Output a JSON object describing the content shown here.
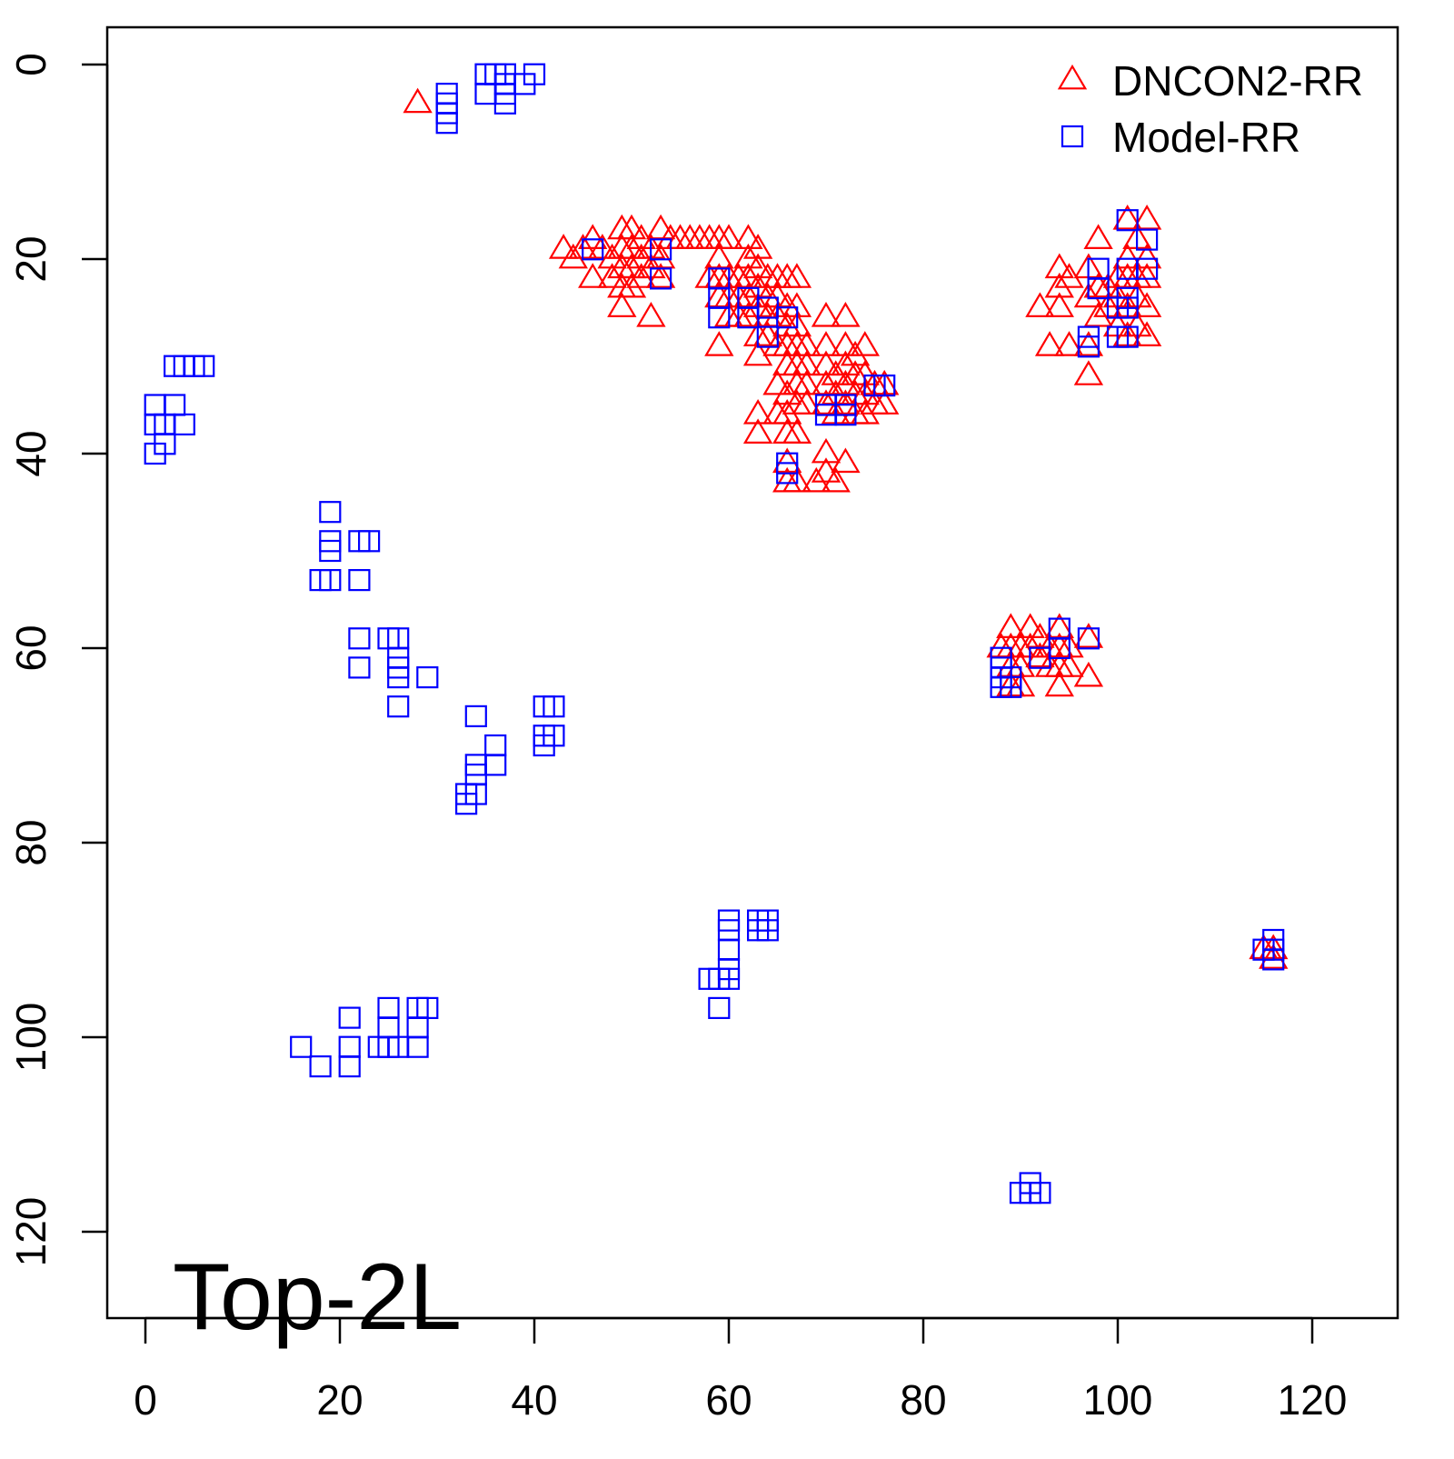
{
  "chart_data": {
    "type": "scatter",
    "title": "",
    "xlabel": "",
    "ylabel": "",
    "annotation": "Top-2L",
    "xlim": [
      -4,
      129
    ],
    "ylim": [
      0,
      129
    ],
    "y_reversed": true,
    "x_ticks": [
      0,
      20,
      40,
      60,
      80,
      100,
      120
    ],
    "y_ticks": [
      0,
      20,
      40,
      60,
      80,
      100,
      120
    ],
    "legend_position": "top-right",
    "series": [
      {
        "name": "DNCON2-RR",
        "marker": "open-triangle",
        "color": "#ff0000",
        "points": [
          [
            28,
            4
          ],
          [
            43,
            19
          ],
          [
            44,
            20
          ],
          [
            45,
            19
          ],
          [
            46,
            18
          ],
          [
            46,
            22
          ],
          [
            47,
            19
          ],
          [
            48,
            20
          ],
          [
            48,
            22
          ],
          [
            49,
            17
          ],
          [
            49,
            19
          ],
          [
            49,
            21
          ],
          [
            49,
            23
          ],
          [
            49,
            25
          ],
          [
            50,
            17
          ],
          [
            50,
            19
          ],
          [
            50,
            21
          ],
          [
            50,
            23
          ],
          [
            51,
            18
          ],
          [
            51,
            20
          ],
          [
            51,
            22
          ],
          [
            52,
            19
          ],
          [
            52,
            21
          ],
          [
            52,
            26
          ],
          [
            53,
            17
          ],
          [
            53,
            20
          ],
          [
            53,
            22
          ],
          [
            54,
            18
          ],
          [
            55,
            18
          ],
          [
            56,
            18
          ],
          [
            57,
            18
          ],
          [
            58,
            18
          ],
          [
            58,
            22
          ],
          [
            59,
            18
          ],
          [
            59,
            20
          ],
          [
            59,
            22
          ],
          [
            59,
            24
          ],
          [
            59,
            29
          ],
          [
            60,
            18
          ],
          [
            60,
            22
          ],
          [
            60,
            24
          ],
          [
            60,
            26
          ],
          [
            61,
            22
          ],
          [
            61,
            24
          ],
          [
            61,
            26
          ],
          [
            62,
            18
          ],
          [
            62,
            20
          ],
          [
            62,
            22
          ],
          [
            62,
            24
          ],
          [
            62,
            26
          ],
          [
            63,
            19
          ],
          [
            63,
            21
          ],
          [
            63,
            23
          ],
          [
            63,
            25
          ],
          [
            63,
            28
          ],
          [
            63,
            30
          ],
          [
            63,
            36
          ],
          [
            63,
            38
          ],
          [
            64,
            22
          ],
          [
            64,
            24
          ],
          [
            64,
            26
          ],
          [
            64,
            28
          ],
          [
            65,
            22
          ],
          [
            65,
            24
          ],
          [
            65,
            26
          ],
          [
            65,
            29
          ],
          [
            65,
            33
          ],
          [
            65,
            36
          ],
          [
            66,
            22
          ],
          [
            66,
            25
          ],
          [
            66,
            27
          ],
          [
            66,
            29
          ],
          [
            66,
            31
          ],
          [
            66,
            34
          ],
          [
            66,
            36
          ],
          [
            66,
            38
          ],
          [
            66,
            41
          ],
          [
            66,
            43
          ],
          [
            67,
            22
          ],
          [
            67,
            25
          ],
          [
            67,
            27
          ],
          [
            67,
            29
          ],
          [
            67,
            31
          ],
          [
            67,
            33
          ],
          [
            67,
            35
          ],
          [
            67,
            38
          ],
          [
            67,
            43
          ],
          [
            68,
            29
          ],
          [
            68,
            31
          ],
          [
            68,
            33
          ],
          [
            68,
            35
          ],
          [
            69,
            43
          ],
          [
            70,
            26
          ],
          [
            70,
            29
          ],
          [
            70,
            31
          ],
          [
            70,
            33
          ],
          [
            70,
            35
          ],
          [
            70,
            40
          ],
          [
            70,
            42
          ],
          [
            71,
            32
          ],
          [
            71,
            34
          ],
          [
            71,
            36
          ],
          [
            71,
            43
          ],
          [
            72,
            26
          ],
          [
            72,
            29
          ],
          [
            72,
            31
          ],
          [
            72,
            33
          ],
          [
            72,
            35
          ],
          [
            72,
            41
          ],
          [
            73,
            30
          ],
          [
            73,
            32
          ],
          [
            73,
            34
          ],
          [
            73,
            36
          ],
          [
            74,
            29
          ],
          [
            74,
            32
          ],
          [
            74,
            34
          ],
          [
            74,
            36
          ],
          [
            75,
            33
          ],
          [
            75,
            35
          ],
          [
            76,
            33
          ],
          [
            76,
            35
          ],
          [
            91,
            58
          ],
          [
            88,
            60
          ],
          [
            89,
            58
          ],
          [
            89,
            60
          ],
          [
            89,
            62
          ],
          [
            89,
            64
          ],
          [
            90,
            60
          ],
          [
            90,
            62
          ],
          [
            90,
            64
          ],
          [
            91,
            60
          ],
          [
            92,
            59
          ],
          [
            92,
            61
          ],
          [
            93,
            60
          ],
          [
            93,
            62
          ],
          [
            94,
            58
          ],
          [
            94,
            60
          ],
          [
            94,
            62
          ],
          [
            94,
            64
          ],
          [
            95,
            60
          ],
          [
            95,
            62
          ],
          [
            97,
            59
          ],
          [
            97,
            63
          ],
          [
            92,
            25
          ],
          [
            93,
            29
          ],
          [
            94,
            21
          ],
          [
            94,
            23
          ],
          [
            94,
            25
          ],
          [
            95,
            22
          ],
          [
            95,
            29
          ],
          [
            97,
            21
          ],
          [
            97,
            24
          ],
          [
            97,
            29
          ],
          [
            97,
            32
          ],
          [
            98,
            18
          ],
          [
            98,
            23
          ],
          [
            98,
            26
          ],
          [
            99,
            23
          ],
          [
            99,
            25
          ],
          [
            100,
            22
          ],
          [
            100,
            24
          ],
          [
            100,
            27
          ],
          [
            101,
            16
          ],
          [
            101,
            20
          ],
          [
            101,
            22
          ],
          [
            101,
            25
          ],
          [
            101,
            28
          ],
          [
            102,
            18
          ],
          [
            102,
            22
          ],
          [
            102,
            24
          ],
          [
            102,
            27
          ],
          [
            103,
            16
          ],
          [
            103,
            20
          ],
          [
            103,
            22
          ],
          [
            103,
            25
          ],
          [
            103,
            28
          ],
          [
            115,
            91
          ],
          [
            116,
            91
          ],
          [
            116,
            92
          ]
        ]
      },
      {
        "name": "Model-RR",
        "marker": "open-square",
        "color": "#0000ff",
        "points": [
          [
            31,
            3
          ],
          [
            31,
            4
          ],
          [
            31,
            5
          ],
          [
            31,
            6
          ],
          [
            35,
            1
          ],
          [
            35,
            3
          ],
          [
            36,
            1
          ],
          [
            37,
            1
          ],
          [
            37,
            2
          ],
          [
            37,
            3
          ],
          [
            37,
            4
          ],
          [
            39,
            2
          ],
          [
            40,
            1
          ],
          [
            1,
            35
          ],
          [
            1,
            37
          ],
          [
            1,
            40
          ],
          [
            2,
            37
          ],
          [
            2,
            39
          ],
          [
            3,
            35
          ],
          [
            3,
            31
          ],
          [
            4,
            31
          ],
          [
            4,
            37
          ],
          [
            5,
            31
          ],
          [
            6,
            31
          ],
          [
            19,
            46
          ],
          [
            19,
            49
          ],
          [
            19,
            50
          ],
          [
            18,
            53
          ],
          [
            19,
            53
          ],
          [
            22,
            49
          ],
          [
            23,
            49
          ],
          [
            22,
            53
          ],
          [
            22,
            59
          ],
          [
            22,
            62
          ],
          [
            25,
            59
          ],
          [
            26,
            59
          ],
          [
            26,
            61
          ],
          [
            26,
            62
          ],
          [
            26,
            63
          ],
          [
            26,
            66
          ],
          [
            29,
            63
          ],
          [
            34,
            67
          ],
          [
            33,
            75
          ],
          [
            33,
            76
          ],
          [
            34,
            72
          ],
          [
            34,
            73
          ],
          [
            34,
            75
          ],
          [
            36,
            70
          ],
          [
            36,
            72
          ],
          [
            41,
            66
          ],
          [
            42,
            66
          ],
          [
            41,
            69
          ],
          [
            41,
            70
          ],
          [
            42,
            69
          ],
          [
            46,
            19
          ],
          [
            53,
            19
          ],
          [
            53,
            22
          ],
          [
            59,
            22
          ],
          [
            59,
            24
          ],
          [
            59,
            26
          ],
          [
            62,
            24
          ],
          [
            62,
            26
          ],
          [
            64,
            25
          ],
          [
            64,
            28
          ],
          [
            66,
            26
          ],
          [
            66,
            41
          ],
          [
            66,
            42
          ],
          [
            70,
            35
          ],
          [
            70,
            36
          ],
          [
            72,
            35
          ],
          [
            72,
            36
          ],
          [
            75,
            33
          ],
          [
            76,
            33
          ],
          [
            16,
            101
          ],
          [
            18,
            103
          ],
          [
            21,
            98
          ],
          [
            21,
            101
          ],
          [
            21,
            103
          ],
          [
            24,
            101
          ],
          [
            25,
            97
          ],
          [
            25,
            99
          ],
          [
            25,
            101
          ],
          [
            26,
            101
          ],
          [
            28,
            97
          ],
          [
            28,
            99
          ],
          [
            28,
            101
          ],
          [
            29,
            97
          ],
          [
            58,
            94
          ],
          [
            59,
            94
          ],
          [
            59,
            97
          ],
          [
            60,
            88
          ],
          [
            60,
            89
          ],
          [
            60,
            91
          ],
          [
            60,
            93
          ],
          [
            60,
            94
          ],
          [
            63,
            88
          ],
          [
            63,
            89
          ],
          [
            64,
            88
          ],
          [
            64,
            89
          ],
          [
            88,
            61
          ],
          [
            88,
            62
          ],
          [
            88,
            63
          ],
          [
            88,
            64
          ],
          [
            89,
            63
          ],
          [
            89,
            64
          ],
          [
            92,
            61
          ],
          [
            94,
            58
          ],
          [
            94,
            60
          ],
          [
            97,
            59
          ],
          [
            97,
            28
          ],
          [
            97,
            29
          ],
          [
            98,
            21
          ],
          [
            98,
            23
          ],
          [
            100,
            25
          ],
          [
            100,
            28
          ],
          [
            101,
            16
          ],
          [
            101,
            21
          ],
          [
            101,
            24
          ],
          [
            101,
            25
          ],
          [
            101,
            28
          ],
          [
            103,
            18
          ],
          [
            103,
            21
          ],
          [
            90,
            116
          ],
          [
            91,
            115
          ],
          [
            91,
            116
          ],
          [
            92,
            116
          ],
          [
            115,
            91
          ],
          [
            116,
            90
          ],
          [
            116,
            91
          ],
          [
            116,
            92
          ]
        ]
      }
    ]
  }
}
